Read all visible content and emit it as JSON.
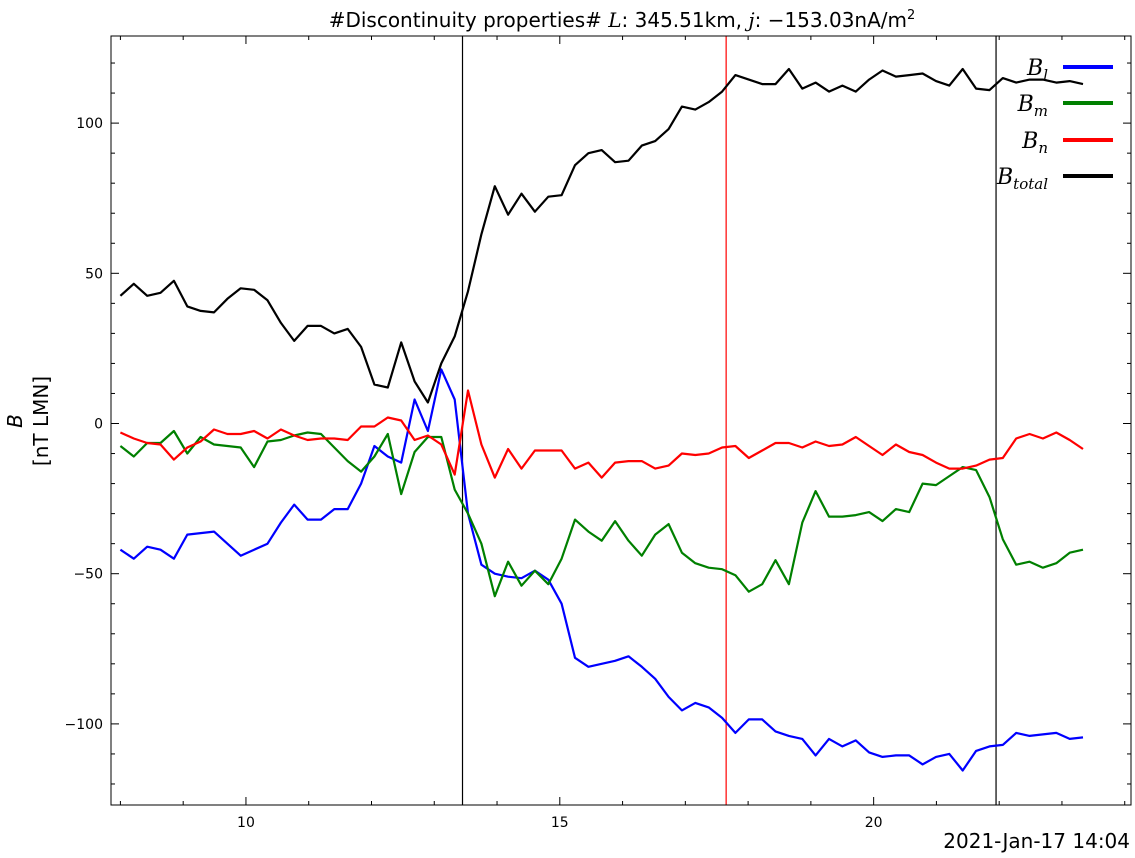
{
  "chart_data": {
    "type": "line",
    "title": "#Discontinuity properties# L: 345.51km, j: −153.03nA/m²",
    "title_parts": {
      "prefix": "#Discontinuity properties# ",
      "l_symbol": "L",
      "l_value": ": 345.51km, ",
      "j_symbol": "j",
      "j_value": ": −153.03nA/m",
      "j_exp": "2"
    },
    "ylabel_line1": "B",
    "ylabel_line2": "[nT LMN]",
    "timestamp": "2021-Jan-17 14:04",
    "xlim": [
      7.85,
      24.1
    ],
    "ylim": [
      -127,
      129
    ],
    "xticks": [
      10,
      15,
      20
    ],
    "yticks": [
      -100,
      -50,
      0,
      50,
      100
    ],
    "ytick_labels": [
      "−100",
      "−50",
      "0",
      "50",
      "100"
    ],
    "legend_position": "top-right",
    "vertical_lines": [
      {
        "x": 13.45,
        "color": "#000000"
      },
      {
        "x": 17.65,
        "color": "#ff0000"
      },
      {
        "x": 21.95,
        "color": "#000000"
      }
    ],
    "x_start": 8.0,
    "x_step": 0.213,
    "series": [
      {
        "name": "B",
        "sub": "l",
        "color": "#0000ff",
        "values": [
          -42,
          -45,
          -41,
          -42,
          -45,
          -37,
          -36.5,
          -36,
          -40,
          -44,
          -42,
          -40,
          -33,
          -27,
          -32,
          -32,
          -28.5,
          -28.5,
          -20,
          -7.5,
          -11,
          -13,
          8,
          -2.5,
          18,
          8,
          -30,
          -47,
          -50,
          -51,
          -51.5,
          -49,
          -52,
          -60,
          -78,
          -81,
          -80,
          -79,
          -77.5,
          -81,
          -85,
          -91,
          -95.5,
          -93,
          -94.5,
          -98,
          -103,
          -98.5,
          -98.5,
          -102.5,
          -104,
          -105,
          -110.5,
          -105,
          -107.5,
          -105.5,
          -109.5,
          -111,
          -110.5,
          -110.5,
          -113.5,
          -111,
          -110,
          -115.5,
          -109,
          -107.5,
          -107,
          -103,
          -104,
          -103.5,
          -103,
          -105,
          -104.5
        ]
      },
      {
        "name": "B",
        "sub": "m",
        "color": "#008000",
        "values": [
          -7.5,
          -11,
          -6.5,
          -6.5,
          -2.5,
          -10,
          -4.5,
          -7,
          -7.5,
          -8,
          -14.5,
          -6,
          -5.5,
          -4,
          -3,
          -3.5,
          -8,
          -12.5,
          -16,
          -11,
          -3.5,
          -23.5,
          -9.5,
          -4.5,
          -4.5,
          -22,
          -30,
          -40,
          -57.5,
          -46,
          -54,
          -49,
          -53.5,
          -45,
          -32,
          -36,
          -39,
          -32.5,
          -39,
          -44,
          -37,
          -33.5,
          -43,
          -46.5,
          -48,
          -48.5,
          -50.5,
          -56,
          -53.5,
          -45.5,
          -53.5,
          -33,
          -22.5,
          -31,
          -31,
          -30.5,
          -29.5,
          -32.5,
          -28.5,
          -29.5,
          -20,
          -20.5,
          -17.5,
          -14.5,
          -15.5,
          -24.5,
          -38.5,
          -47,
          -46,
          -48,
          -46.5,
          -43,
          -42
        ]
      },
      {
        "name": "B",
        "sub": "n",
        "color": "#ff0000",
        "values": [
          -3,
          -5,
          -6.5,
          -7,
          -12,
          -8,
          -6,
          -2,
          -3.5,
          -3.5,
          -2.5,
          -5,
          -2,
          -4,
          -5.5,
          -5,
          -5,
          -5.5,
          -1,
          -1,
          2,
          1,
          -5.5,
          -4,
          -7,
          -17,
          11,
          -7,
          -18,
          -8.5,
          -15,
          -9,
          -9,
          -9,
          -15,
          -13,
          -18,
          -13,
          -12.5,
          -12.5,
          -15,
          -14,
          -10,
          -10.5,
          -10,
          -8,
          -7.5,
          -11.5,
          -9,
          -6.5,
          -6.5,
          -8,
          -6,
          -7.5,
          -7,
          -4.5,
          -7.5,
          -10.5,
          -7,
          -9.5,
          -10.5,
          -13,
          -15,
          -15,
          -14,
          -12,
          -11.5,
          -5,
          -3.5,
          -5,
          -3,
          -5.5,
          -8.5
        ]
      },
      {
        "name": "B",
        "sub": "total",
        "color": "#000000",
        "values": [
          42.5,
          46.5,
          42.5,
          43.5,
          47.5,
          39,
          37.5,
          37,
          41.5,
          45,
          44.5,
          41,
          33.5,
          27.5,
          32.5,
          32.5,
          30,
          31.5,
          25.5,
          13,
          12,
          27,
          14,
          7,
          20,
          29,
          44,
          63,
          79,
          69.5,
          76.5,
          70.5,
          75.5,
          76,
          86,
          90,
          91,
          87,
          87.5,
          92.5,
          94,
          98,
          105.5,
          104.5,
          107,
          110.5,
          116,
          114.5,
          113,
          113,
          118,
          111.5,
          113.5,
          110.5,
          112.5,
          110.5,
          114.5,
          117.5,
          115.5,
          116,
          116.5,
          114,
          112.5,
          118,
          111.5,
          111,
          115,
          113.5,
          114.5,
          114.5,
          113.5,
          114,
          113
        ]
      }
    ]
  }
}
